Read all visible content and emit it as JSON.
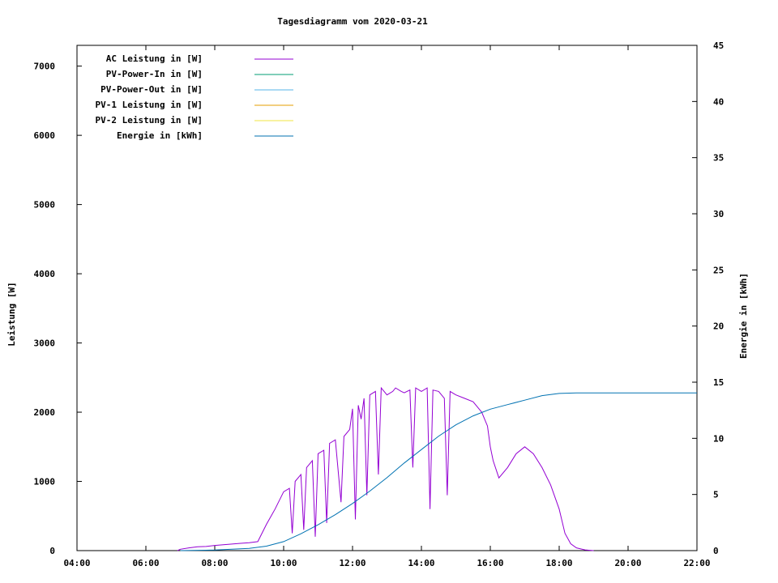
{
  "chart_data": {
    "type": "line",
    "title": "Tagesdiagramm vom 2020-03-21",
    "ylabel": "Leistung [W]",
    "y2label": "Energie in [kWh]",
    "xlabel": "",
    "xlim": [
      "04:00",
      "22:00"
    ],
    "ylim": [
      0,
      7300
    ],
    "y2lim": [
      0,
      45
    ],
    "x_ticks": [
      "04:00",
      "06:00",
      "08:00",
      "10:00",
      "12:00",
      "14:00",
      "16:00",
      "18:00",
      "20:00",
      "22:00"
    ],
    "y_ticks": [
      0,
      1000,
      2000,
      3000,
      4000,
      5000,
      6000,
      7000
    ],
    "y2_ticks": [
      0,
      5,
      10,
      15,
      20,
      25,
      30,
      35,
      40,
      45
    ],
    "grid": false,
    "legend_position": "top-left",
    "series": [
      {
        "name": "AC Leistung in [W]",
        "color": "#9400d3",
        "axis": "left",
        "points": [
          [
            "06:55",
            0
          ],
          [
            "07:00",
            20
          ],
          [
            "07:15",
            40
          ],
          [
            "07:30",
            55
          ],
          [
            "07:45",
            60
          ],
          [
            "08:00",
            75
          ],
          [
            "08:15",
            85
          ],
          [
            "08:30",
            95
          ],
          [
            "08:45",
            105
          ],
          [
            "09:00",
            115
          ],
          [
            "09:15",
            130
          ],
          [
            "09:30",
            380
          ],
          [
            "09:45",
            600
          ],
          [
            "10:00",
            850
          ],
          [
            "10:10",
            900
          ],
          [
            "10:15",
            250
          ],
          [
            "10:20",
            1000
          ],
          [
            "10:30",
            1100
          ],
          [
            "10:35",
            300
          ],
          [
            "10:40",
            1200
          ],
          [
            "10:50",
            1300
          ],
          [
            "10:55",
            200
          ],
          [
            "11:00",
            1400
          ],
          [
            "11:10",
            1450
          ],
          [
            "11:15",
            400
          ],
          [
            "11:20",
            1550
          ],
          [
            "11:30",
            1600
          ],
          [
            "11:40",
            700
          ],
          [
            "11:45",
            1650
          ],
          [
            "11:55",
            1750
          ],
          [
            "12:00",
            2050
          ],
          [
            "12:05",
            450
          ],
          [
            "12:10",
            2100
          ],
          [
            "12:15",
            1900
          ],
          [
            "12:20",
            2200
          ],
          [
            "12:25",
            800
          ],
          [
            "12:30",
            2250
          ],
          [
            "12:40",
            2300
          ],
          [
            "12:45",
            1100
          ],
          [
            "12:50",
            2350
          ],
          [
            "13:00",
            2250
          ],
          [
            "13:10",
            2300
          ],
          [
            "13:15",
            2350
          ],
          [
            "13:25",
            2300
          ],
          [
            "13:30",
            2280
          ],
          [
            "13:40",
            2320
          ],
          [
            "13:45",
            1200
          ],
          [
            "13:50",
            2350
          ],
          [
            "14:00",
            2300
          ],
          [
            "14:10",
            2350
          ],
          [
            "14:15",
            600
          ],
          [
            "14:20",
            2320
          ],
          [
            "14:30",
            2300
          ],
          [
            "14:40",
            2200
          ],
          [
            "14:45",
            800
          ],
          [
            "14:50",
            2300
          ],
          [
            "15:00",
            2250
          ],
          [
            "15:15",
            2200
          ],
          [
            "15:30",
            2150
          ],
          [
            "15:45",
            2000
          ],
          [
            "15:55",
            1800
          ],
          [
            "16:00",
            1500
          ],
          [
            "16:05",
            1300
          ],
          [
            "16:15",
            1050
          ],
          [
            "16:30",
            1200
          ],
          [
            "16:45",
            1400
          ],
          [
            "17:00",
            1500
          ],
          [
            "17:15",
            1400
          ],
          [
            "17:30",
            1200
          ],
          [
            "17:45",
            950
          ],
          [
            "18:00",
            600
          ],
          [
            "18:10",
            250
          ],
          [
            "18:20",
            100
          ],
          [
            "18:30",
            40
          ],
          [
            "18:45",
            10
          ],
          [
            "19:00",
            0
          ]
        ]
      },
      {
        "name": "PV-Power-In in [W]",
        "color": "#009e73",
        "axis": "left",
        "points": []
      },
      {
        "name": "PV-Power-Out in [W]",
        "color": "#56b4e9",
        "axis": "left",
        "points": []
      },
      {
        "name": "PV-1 Leistung in [W]",
        "color": "#e69f00",
        "axis": "left",
        "points": []
      },
      {
        "name": "PV-2 Leistung in [W]",
        "color": "#f0e442",
        "axis": "left",
        "points": []
      },
      {
        "name": "Energie in [kWh]",
        "color": "#0072b2",
        "axis": "right",
        "points": [
          [
            "07:00",
            0
          ],
          [
            "08:00",
            0.05
          ],
          [
            "09:00",
            0.2
          ],
          [
            "09:30",
            0.4
          ],
          [
            "10:00",
            0.8
          ],
          [
            "10:30",
            1.5
          ],
          [
            "11:00",
            2.3
          ],
          [
            "11:30",
            3.2
          ],
          [
            "12:00",
            4.2
          ],
          [
            "12:30",
            5.3
          ],
          [
            "13:00",
            6.5
          ],
          [
            "13:30",
            7.8
          ],
          [
            "14:00",
            9.0
          ],
          [
            "14:30",
            10.2
          ],
          [
            "15:00",
            11.2
          ],
          [
            "15:30",
            12.0
          ],
          [
            "16:00",
            12.6
          ],
          [
            "16:30",
            13.0
          ],
          [
            "17:00",
            13.4
          ],
          [
            "17:30",
            13.8
          ],
          [
            "18:00",
            14.0
          ],
          [
            "18:30",
            14.05
          ],
          [
            "22:00",
            14.05
          ]
        ]
      }
    ]
  }
}
